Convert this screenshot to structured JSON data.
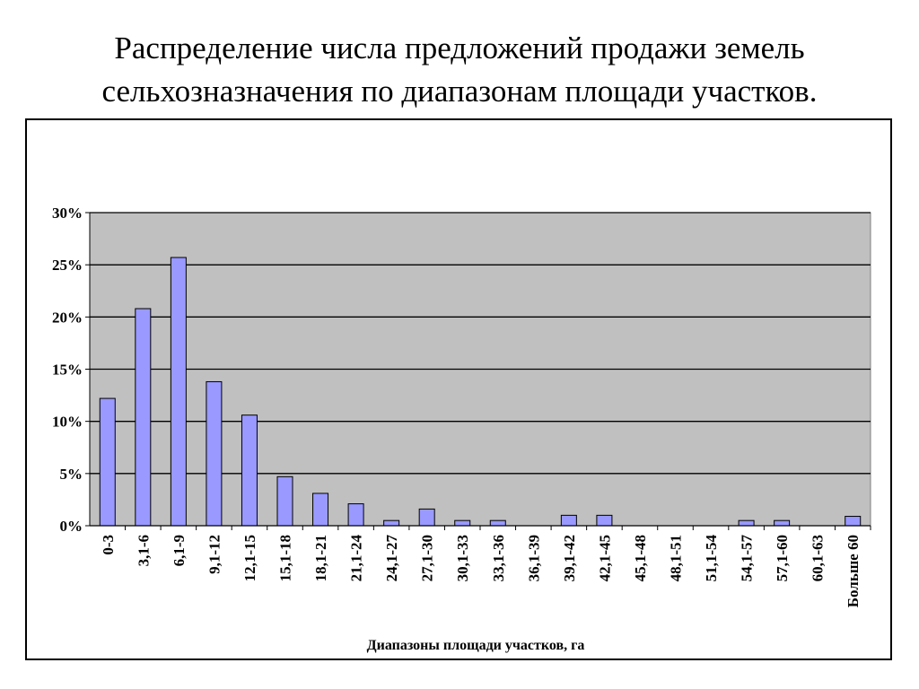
{
  "slide": {
    "title_line1": "Распределение числа предложений продажи земель",
    "title_line2": "сельхозназначения по диапазонам площади участков."
  },
  "colors": {
    "plot_background": "#c0c0c0",
    "bar_fill": "#9999ff",
    "bar_stroke": "#000000",
    "gridline": "#000000"
  },
  "chart_data": {
    "type": "bar",
    "title": "",
    "xlabel": "Диапазоны площади участков, га",
    "ylabel": "",
    "ylim": [
      0,
      30
    ],
    "y_ticks": [
      0,
      5,
      10,
      15,
      20,
      25,
      30
    ],
    "y_tick_labels": [
      "0%",
      "5%",
      "10%",
      "15%",
      "20%",
      "25%",
      "30%"
    ],
    "grid": true,
    "legend": "none",
    "categories": [
      "0-3",
      "3,1-6",
      "6,1-9",
      "9,1-12",
      "12,1-15",
      "15,1-18",
      "18,1-21",
      "21,1-24",
      "24,1-27",
      "27,1-30",
      "30,1-33",
      "33,1-36",
      "36,1-39",
      "39,1-42",
      "42,1-45",
      "45,1-48",
      "48,1-51",
      "51,1-54",
      "54,1-57",
      "57,1-60",
      "60,1-63",
      "Больше 60"
    ],
    "values": [
      12.2,
      20.8,
      25.7,
      13.8,
      10.6,
      4.7,
      3.1,
      2.1,
      0.5,
      1.6,
      0.5,
      0.5,
      0,
      1.0,
      1.0,
      0,
      0,
      0,
      0.5,
      0.5,
      0,
      0.9
    ]
  }
}
